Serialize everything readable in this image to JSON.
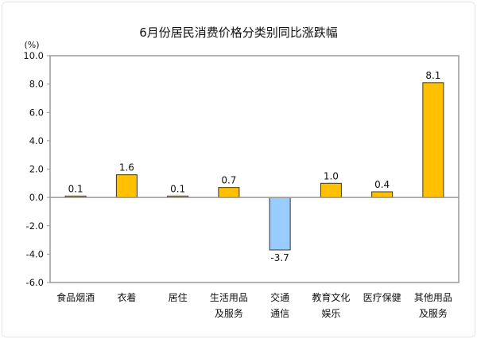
{
  "chart_data": {
    "type": "bar",
    "title": "6月份居民消费价格分类别同比涨跌幅",
    "ylabel": "(%)",
    "xlabel": "",
    "ylim": [
      -6.0,
      10.0
    ],
    "yticks": [
      "10.0",
      "8.0",
      "6.0",
      "4.0",
      "2.0",
      "0.0",
      "-2.0",
      "-4.0",
      "-6.0"
    ],
    "grid": false,
    "legend": "none",
    "categories": [
      [
        "食品烟酒"
      ],
      [
        "衣着"
      ],
      [
        "居住"
      ],
      [
        "生活用品",
        "及服务"
      ],
      [
        "交通",
        "通信"
      ],
      [
        "教育文化",
        "娱乐"
      ],
      [
        "医疗保健"
      ],
      [
        "其他用品",
        "及服务"
      ]
    ],
    "values": [
      0.1,
      1.6,
      0.1,
      0.7,
      -3.7,
      1.0,
      0.4,
      8.1
    ],
    "data_labels": [
      "0.1",
      "1.6",
      "0.1",
      "0.7",
      "-3.7",
      "1.0",
      "0.4",
      "8.1"
    ],
    "colors": {
      "positive": "#FFC000",
      "negative": "#99CCFF",
      "bar_border": "#333333",
      "axis": "#999999"
    }
  }
}
